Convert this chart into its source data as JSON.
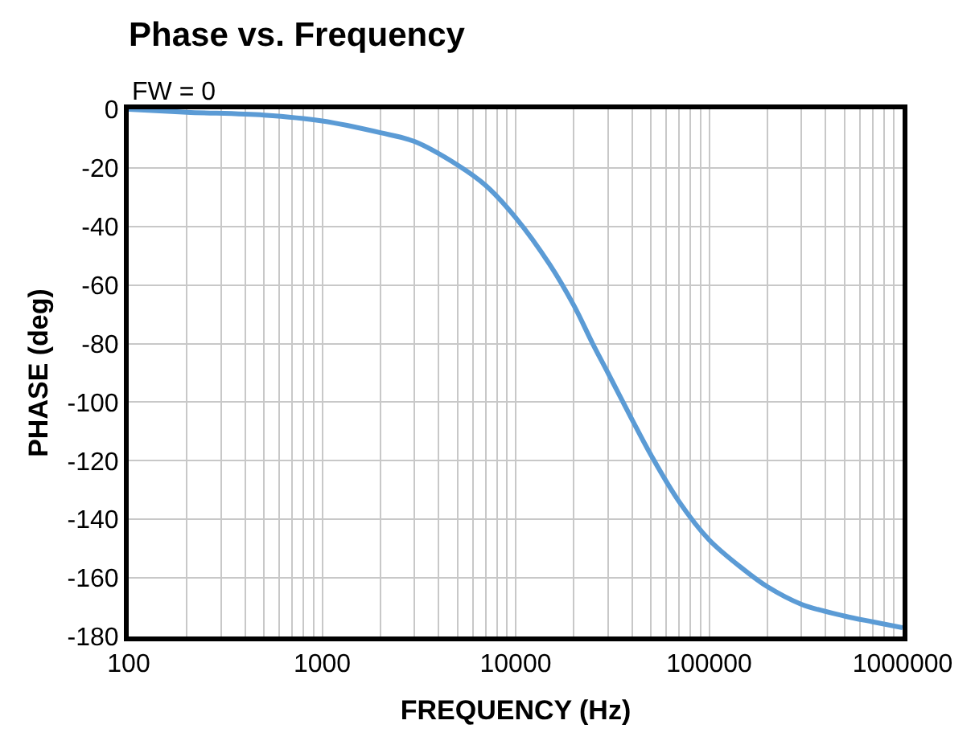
{
  "chart_data": {
    "type": "line",
    "title": "Phase vs. Frequency",
    "subtitle": "FW = 0",
    "xlabel": "FREQUENCY (Hz)",
    "ylabel": "PHASE (deg)",
    "log": "x",
    "grid": true,
    "marker": "none",
    "line_style": "solid",
    "x": [
      100,
      200,
      500,
      1000,
      2000,
      3000,
      5000,
      7000,
      10000,
      15000,
      20000,
      25000,
      30000,
      40000,
      50000,
      70000,
      100000,
      150000,
      200000,
      300000,
      500000,
      700000,
      1000000
    ],
    "series": [
      {
        "color": "#5b9bd5",
        "values": [
          0,
          -1,
          -2,
          -4,
          -8,
          -11,
          -19,
          -26,
          -37,
          -53,
          -67,
          -80,
          -90,
          -106,
          -118,
          -134,
          -147,
          -157,
          -163,
          -169,
          -173,
          -175,
          -177
        ]
      }
    ],
    "xlim": [
      100,
      1000000
    ],
    "xticks": [
      100,
      1000,
      10000,
      100000,
      1000000
    ],
    "ylim": [
      -180,
      0
    ],
    "yticks": [
      0,
      -20,
      -40,
      -60,
      -80,
      -100,
      -120,
      -140,
      -160,
      -180
    ]
  }
}
